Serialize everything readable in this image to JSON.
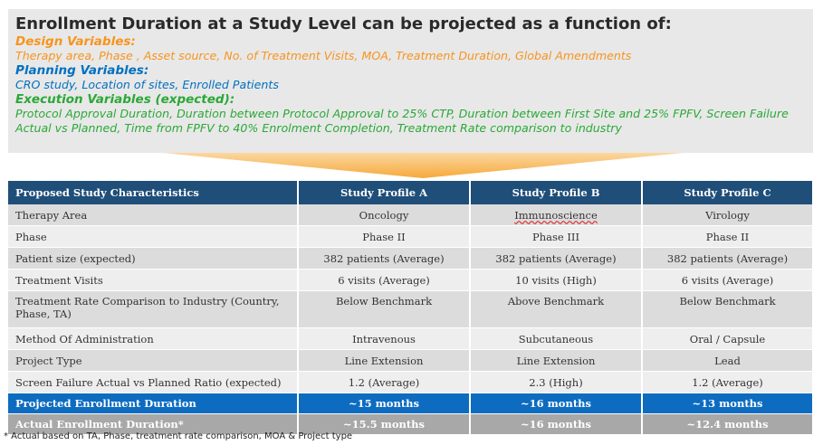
{
  "header": {
    "headline": "Enrollment Duration at a Study Level can be projected as a function of:",
    "sections": [
      {
        "title": "Design Variables:",
        "body": "Therapy area, Phase , Asset source, No. of Treatment Visits, MOA, Treatment Duration, Global Amendments",
        "color": "#f7941d"
      },
      {
        "title": "Planning Variables:",
        "body": "CRO study, Location of sites,  Enrolled Patients",
        "color": "#0070c0"
      },
      {
        "title": "Execution Variables (expected):",
        "body": "Protocol Approval Duration, Duration between Protocol Approval to 25% CTP, Duration between First Site and 25% FPFV, Screen Failure Actual vs Planned, Time from FPFV to 40% Enrolment Completion, Treatment Rate comparison to industry",
        "color": "#2aa836"
      }
    ]
  },
  "table": {
    "columns": [
      "Proposed Study Characteristics",
      "Study Profile A",
      "Study Profile B",
      "Study Profile C"
    ],
    "rows": [
      [
        "Therapy Area",
        "Oncology",
        "Immunoscience",
        "Virology"
      ],
      [
        "Phase",
        "Phase II",
        "Phase III",
        "Phase II"
      ],
      [
        "Patient size (expected)",
        "382 patients (Average)",
        "382 patients (Average)",
        "382 patients (Average)"
      ],
      [
        "Treatment Visits",
        "6 visits (Average)",
        "10 visits (High)",
        "6 visits (Average)"
      ],
      [
        "Treatment Rate Comparison to Industry (Country, Phase, TA)",
        "Below Benchmark",
        "Above Benchmark",
        "Below Benchmark"
      ],
      [
        "Method Of Administration",
        "Intravenous",
        "Subcutaneous",
        "Oral / Capsule"
      ],
      [
        "Project Type",
        "Line Extension",
        "Line Extension",
        "Lead"
      ],
      [
        "Screen Failure Actual vs Planned Ratio (expected)",
        "1.2 (Average)",
        "2.3 (High)",
        "1.2 (Average)"
      ]
    ],
    "projected": [
      "Projected Enrollment Duration",
      "~15 months",
      "~16 months",
      "~13 months"
    ],
    "actual": [
      "Actual Enrollment Duration*",
      "~15.5 months",
      "~16 months",
      "~12.4 months"
    ]
  },
  "footnote": "* Actual based on TA, Phase, treatment rate comparison, MOA & Project type"
}
